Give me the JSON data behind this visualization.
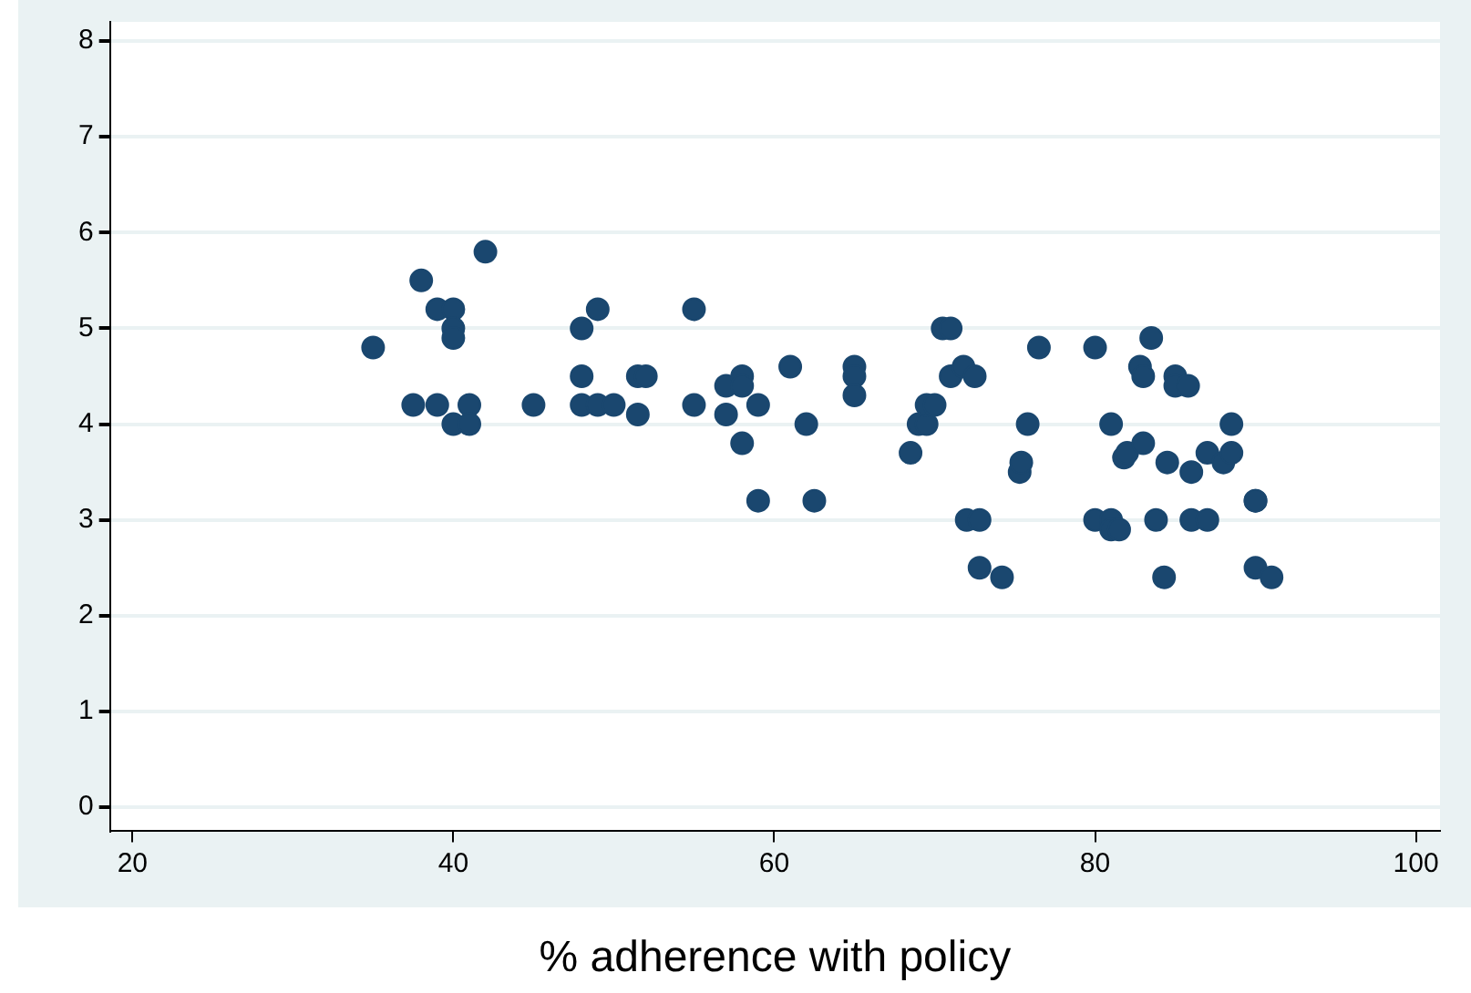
{
  "chart_data": {
    "type": "scatter",
    "xlabel": "% adherence with policy",
    "x": [
      35,
      37.5,
      38,
      39,
      39,
      40,
      40,
      40,
      40,
      41,
      41,
      42,
      45,
      48,
      48,
      48,
      49,
      49,
      50,
      51.5,
      52,
      51.5,
      55,
      55,
      57,
      57,
      58,
      58,
      58,
      59,
      59,
      61,
      62,
      62.5,
      65,
      65,
      65,
      68.5,
      69,
      69.5,
      69.5,
      70,
      70.5,
      71,
      71,
      71.8,
      72.5,
      72,
      72.8,
      72.8,
      74.2,
      75.3,
      75.4,
      75.8,
      76.5,
      80,
      80,
      81,
      81,
      81,
      81.5,
      81.8,
      82,
      82.8,
      83,
      83,
      83.5,
      83.8,
      84.3,
      84.5,
      85,
      85,
      85.8,
      86,
      86,
      87,
      87,
      88,
      88.5,
      88.5,
      90,
      90,
      90,
      91
    ],
    "values": [
      4.8,
      4.2,
      5.5,
      5.2,
      4.2,
      5.2,
      5.0,
      4.9,
      4.0,
      4.2,
      4.0,
      5.8,
      4.2,
      4.5,
      5.0,
      4.2,
      5.2,
      4.2,
      4.2,
      4.5,
      4.5,
      4.1,
      5.2,
      4.2,
      4.4,
      4.1,
      4.5,
      4.4,
      3.8,
      4.2,
      3.2,
      4.6,
      4.0,
      3.2,
      4.6,
      4.5,
      4.3,
      3.7,
      4.0,
      4.0,
      4.2,
      4.2,
      5.0,
      5.0,
      4.5,
      4.6,
      4.5,
      3.0,
      3.0,
      2.5,
      2.4,
      3.5,
      3.6,
      4.0,
      4.8,
      4.8,
      3.0,
      4.0,
      3.0,
      2.9,
      2.9,
      3.65,
      3.7,
      4.6,
      4.5,
      3.8,
      4.9,
      3.0,
      2.4,
      3.6,
      4.5,
      4.4,
      4.4,
      3.5,
      3.0,
      3.7,
      3.0,
      3.6,
      3.7,
      4.0,
      3.2,
      3.2,
      2.5,
      2.4
    ],
    "color": "#1a476f",
    "marker": "circle",
    "grid": "y",
    "xlim": [
      18.6,
      101.5
    ],
    "xticks": [
      20,
      40,
      60,
      80,
      100
    ],
    "ylim": [
      -0.25,
      8.2
    ],
    "yticks": [
      0,
      1,
      2,
      3,
      4,
      5,
      6,
      7,
      8
    ]
  }
}
